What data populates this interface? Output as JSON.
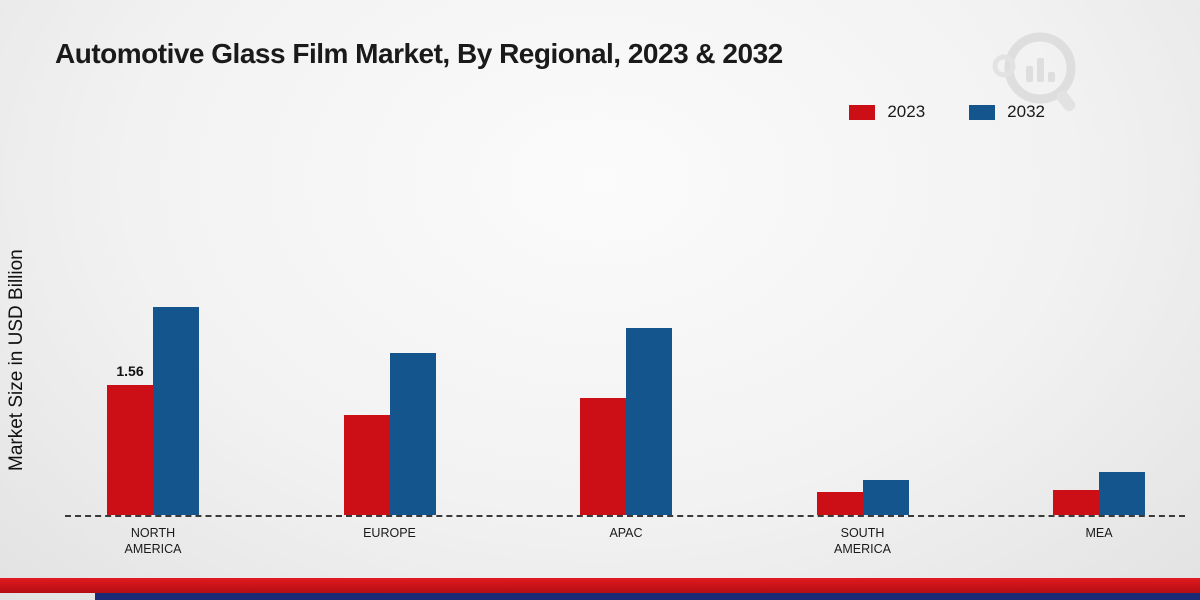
{
  "title": "Automotive Glass Film Market, By Regional, 2023 & 2032",
  "y_axis_label": "Market Size in USD Billion",
  "colors": {
    "series_2023": "#cc0f16",
    "series_2032": "#15558e",
    "bottom_strip_red": "#c8121a",
    "bottom_strip_navy": "#1a2a75"
  },
  "legend": [
    {
      "label": "2023",
      "color": "#cc0f16"
    },
    {
      "label": "2032",
      "color": "#15558e"
    }
  ],
  "chart_data": {
    "type": "bar",
    "categories": [
      "NORTH AMERICA",
      "EUROPE",
      "APAC",
      "SOUTH AMERICA",
      "MEA"
    ],
    "series": [
      {
        "name": "2023",
        "color": "#cc0f16",
        "values": [
          1.56,
          1.2,
          1.4,
          0.28,
          0.3
        ]
      },
      {
        "name": "2032",
        "color": "#15558e",
        "values": [
          2.5,
          1.95,
          2.25,
          0.42,
          0.52
        ]
      }
    ],
    "annotations": [
      {
        "category": "NORTH AMERICA",
        "series": "2023",
        "text": "1.56"
      }
    ],
    "title": "Automotive Glass Film Market, By Regional, 2023 & 2032",
    "xlabel": "",
    "ylabel": "Market Size in USD Billion",
    "ylim": [
      0,
      3
    ],
    "grid": false,
    "legend_position": "top-right",
    "baseline_style": "dashed"
  }
}
